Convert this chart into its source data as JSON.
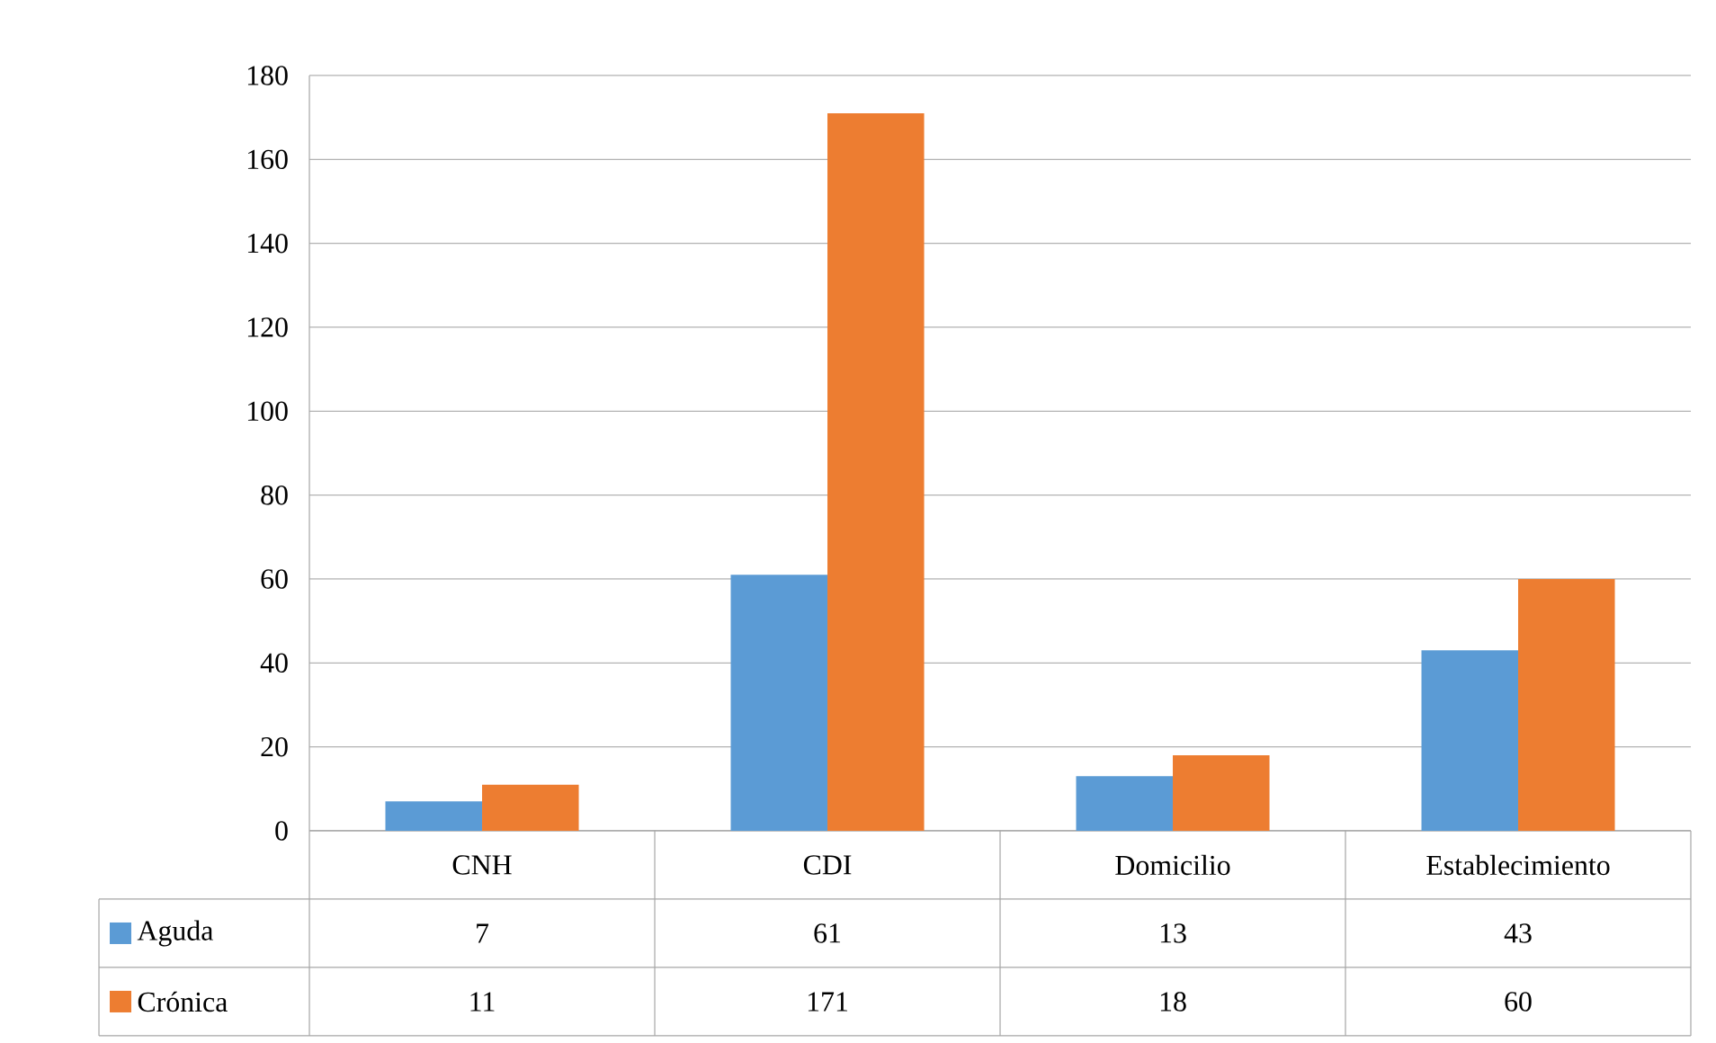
{
  "chart_data": {
    "type": "bar",
    "categories": [
      "CNH",
      "CDI",
      "Domicilio",
      "Establecimiento"
    ],
    "series": [
      {
        "name": "Aguda",
        "color": "#5b9bd5",
        "values": [
          7,
          61,
          13,
          43
        ]
      },
      {
        "name": "Crónica",
        "color": "#ed7d31",
        "values": [
          11,
          171,
          18,
          60
        ]
      }
    ],
    "ylim": [
      0,
      180
    ],
    "yticks": [
      0,
      20,
      40,
      60,
      80,
      100,
      120,
      140,
      160,
      180
    ],
    "grid": "y",
    "legend": "bottom",
    "data_labels": true
  }
}
